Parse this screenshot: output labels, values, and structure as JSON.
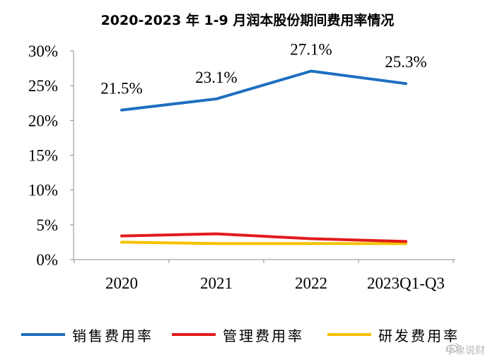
{
  "chart_data": {
    "type": "line",
    "title": "2020-2023 年 1-9 月润本股份期间费用率情况",
    "categories": [
      "2020",
      "2021",
      "2022",
      "2023Q1-Q3"
    ],
    "ylim": [
      0,
      30
    ],
    "yticks": [
      0,
      5,
      10,
      15,
      20,
      25,
      30
    ],
    "ytick_labels": [
      "0%",
      "5%",
      "10%",
      "15%",
      "20%",
      "25%",
      "30%"
    ],
    "series": [
      {
        "name": "销售费用率",
        "color": "#1f6fbf",
        "values": [
          21.5,
          23.1,
          27.1,
          25.3
        ],
        "data_labels": [
          "21.5%",
          "23.1%",
          "27.1%",
          "25.3%"
        ]
      },
      {
        "name": "管理费用率",
        "color": "#e31b1b",
        "values": [
          3.4,
          3.7,
          3.0,
          2.6
        ]
      },
      {
        "name": "研发费用率",
        "color": "#f5c200",
        "values": [
          2.5,
          2.3,
          2.3,
          2.3
        ]
      }
    ],
    "legend_position": "bottom",
    "grid": false
  },
  "watermark": "小象说财"
}
